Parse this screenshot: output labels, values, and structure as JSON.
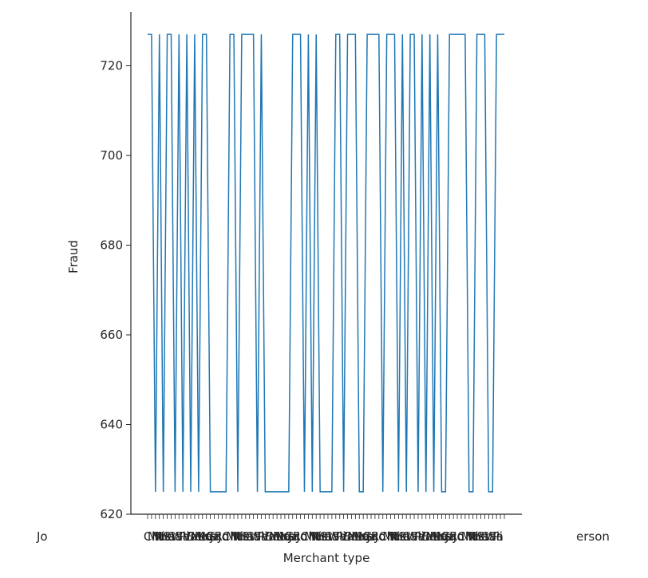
{
  "chart_data": {
    "type": "line",
    "xlabel": "Merchant type",
    "ylabel": "Fraud",
    "ylim": [
      620,
      732
    ],
    "yticks": [
      620,
      640,
      660,
      680,
      700,
      720
    ],
    "grid": false,
    "legend": "none",
    "line_color": "#1f77b4",
    "x_tick_labels_note": "crowded overlapping category labels; leftmost begins 'Jo', rightmost ends 'erson'",
    "x_label_first": "Jo",
    "x_label_last": "erson",
    "series": [
      {
        "values": [
          727,
          727,
          625,
          727,
          625,
          727,
          727,
          625,
          727,
          625,
          727,
          625,
          727,
          625,
          727,
          727,
          625,
          625,
          625,
          625,
          625,
          727,
          727,
          625,
          727,
          727,
          727,
          727,
          625,
          727,
          625,
          625,
          625,
          625,
          625,
          625,
          625,
          727,
          727,
          727,
          625,
          727,
          625,
          727,
          625,
          625,
          625,
          625,
          727,
          727,
          625,
          727,
          727,
          727,
          625,
          625,
          727,
          727,
          727,
          727,
          625,
          727,
          727,
          727,
          625,
          727,
          625,
          727,
          727,
          625,
          727,
          625,
          727,
          625,
          727,
          625,
          625,
          727,
          727,
          727,
          727,
          727,
          625,
          625,
          727,
          727,
          727,
          625,
          625,
          727,
          727,
          727
        ]
      }
    ]
  }
}
